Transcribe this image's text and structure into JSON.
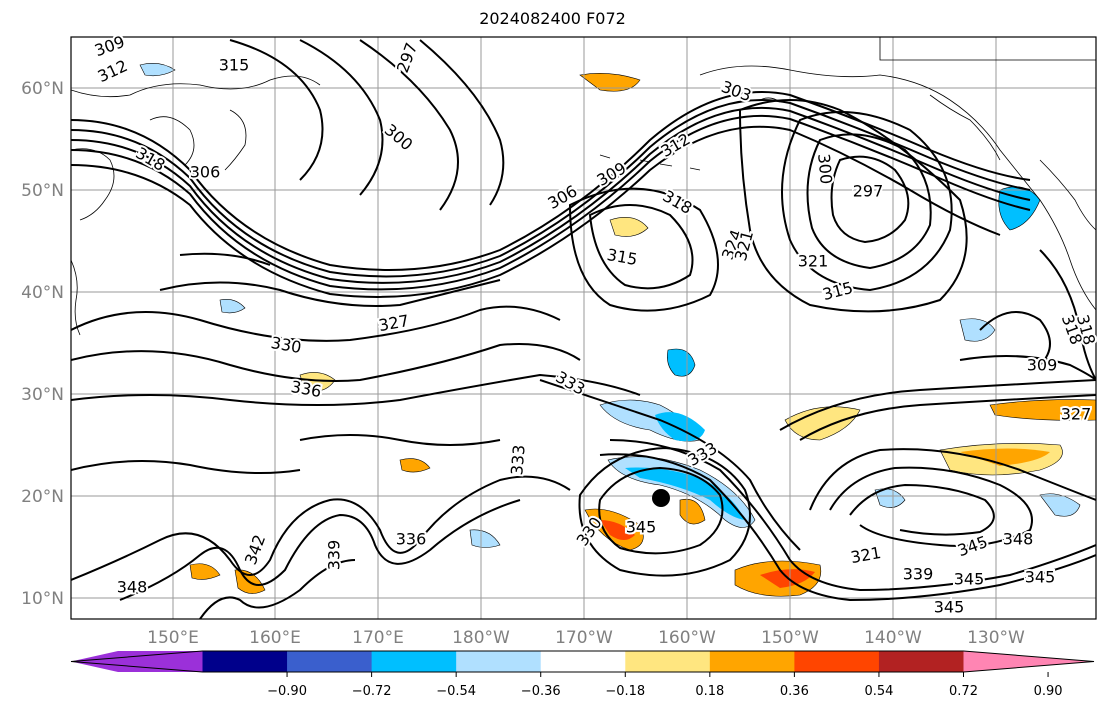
{
  "title": "2024082400 F072",
  "map": {
    "lat_labels": [
      "60°N",
      "50°N",
      "40°N",
      "30°N",
      "20°N",
      "10°N"
    ],
    "lon_labels": [
      "150°E",
      "160°E",
      "170°E",
      "180°W",
      "170°W",
      "160°W",
      "150°W",
      "140°W",
      "130°W"
    ],
    "contour_labels": [
      {
        "text": "309"
      },
      {
        "text": "312"
      },
      {
        "text": "315"
      },
      {
        "text": "297"
      },
      {
        "text": "300"
      },
      {
        "text": "303"
      },
      {
        "text": "318"
      },
      {
        "text": "306"
      },
      {
        "text": "306"
      },
      {
        "text": "309"
      },
      {
        "text": "312"
      },
      {
        "text": "318"
      },
      {
        "text": "300"
      },
      {
        "text": "297"
      },
      {
        "text": "324"
      },
      {
        "text": "321"
      },
      {
        "text": "315"
      },
      {
        "text": "315"
      },
      {
        "text": "321"
      },
      {
        "text": "327"
      },
      {
        "text": "330"
      },
      {
        "text": "336"
      },
      {
        "text": "333"
      },
      {
        "text": "309"
      },
      {
        "text": "318"
      },
      {
        "text": "318"
      },
      {
        "text": "333"
      },
      {
        "text": "333"
      },
      {
        "text": "345"
      },
      {
        "text": "330"
      },
      {
        "text": "336"
      },
      {
        "text": "339"
      },
      {
        "text": "342"
      },
      {
        "text": "348"
      },
      {
        "text": "345"
      },
      {
        "text": "348"
      },
      {
        "text": "345"
      },
      {
        "text": "339"
      },
      {
        "text": "321"
      },
      {
        "text": "345"
      },
      {
        "text": "327"
      },
      {
        "text": "345"
      }
    ],
    "storm_marker": {
      "lat": 19.8,
      "lon": -162.7
    }
  },
  "colorbar": {
    "tick_labels": [
      "−0.90",
      "−0.72",
      "−0.54",
      "−0.36",
      "−0.18",
      "0.18",
      "0.36",
      "0.54",
      "0.72",
      "0.90"
    ],
    "colors": [
      "#9b30d9",
      "#00008b",
      "#3a5fcd",
      "#00bfff",
      "#b0e0ff",
      "#ffffff",
      "#ffe680",
      "#ffa500",
      "#ff4500",
      "#b22222",
      "#ff85b3"
    ]
  }
}
